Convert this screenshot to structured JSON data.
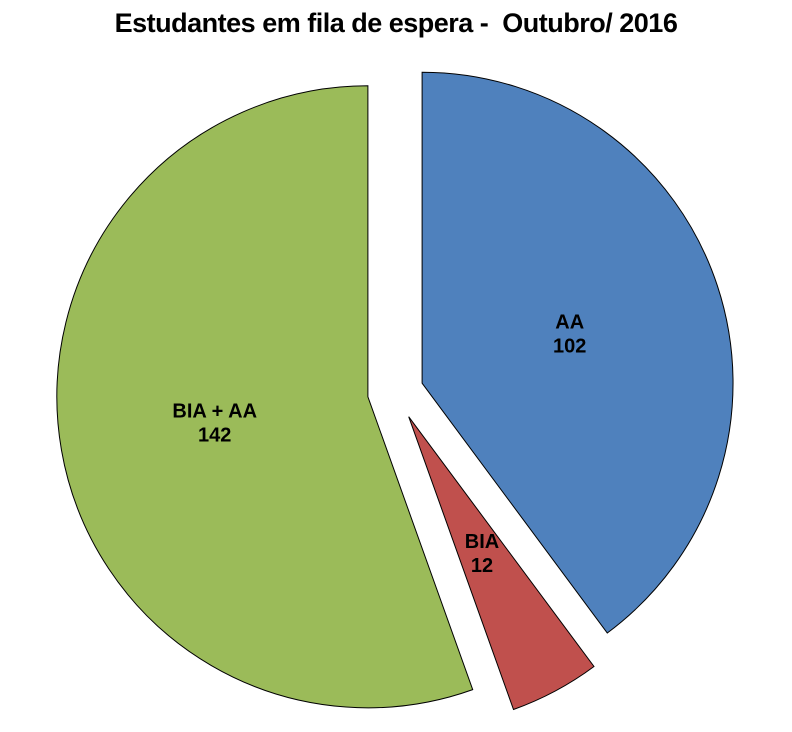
{
  "page": {
    "background": "#FFFFFF"
  },
  "chart_data": {
    "type": "pie",
    "title": "Estudantes em fila de espera -  Outubro/ 2016",
    "title_color": "#000000",
    "slices": [
      {
        "label": "AA",
        "value": 102,
        "color": "#4F81BD"
      },
      {
        "label": "BIA",
        "value": 12,
        "color": "#C0504D"
      },
      {
        "label": "BIA + AA",
        "value": 142,
        "color": "#9BBB59"
      }
    ],
    "start_angle_deg": 0,
    "direction": "clockwise",
    "exploded": true,
    "legend": "none",
    "labels_show": "name_and_value",
    "label_color": "#000000",
    "slice_border_color": "#000000",
    "background": "#FFFFFF"
  }
}
